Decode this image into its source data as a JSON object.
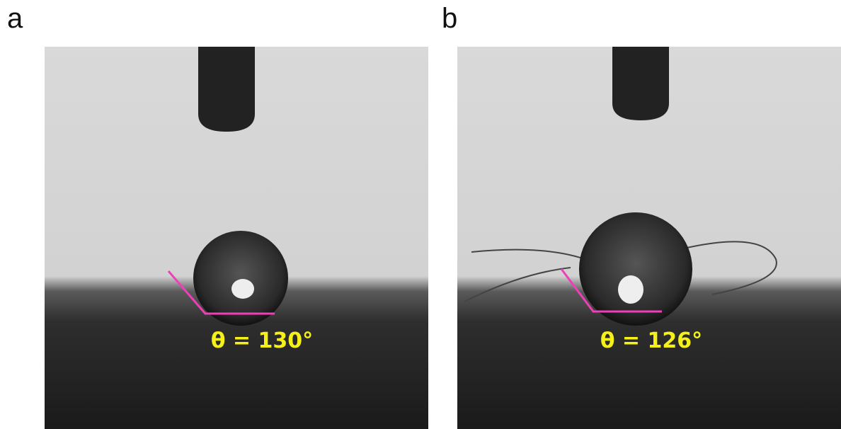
{
  "panels": [
    {
      "label": "a",
      "annotation": "θ = 130°"
    },
    {
      "label": "b",
      "annotation": "θ = 126°"
    }
  ]
}
